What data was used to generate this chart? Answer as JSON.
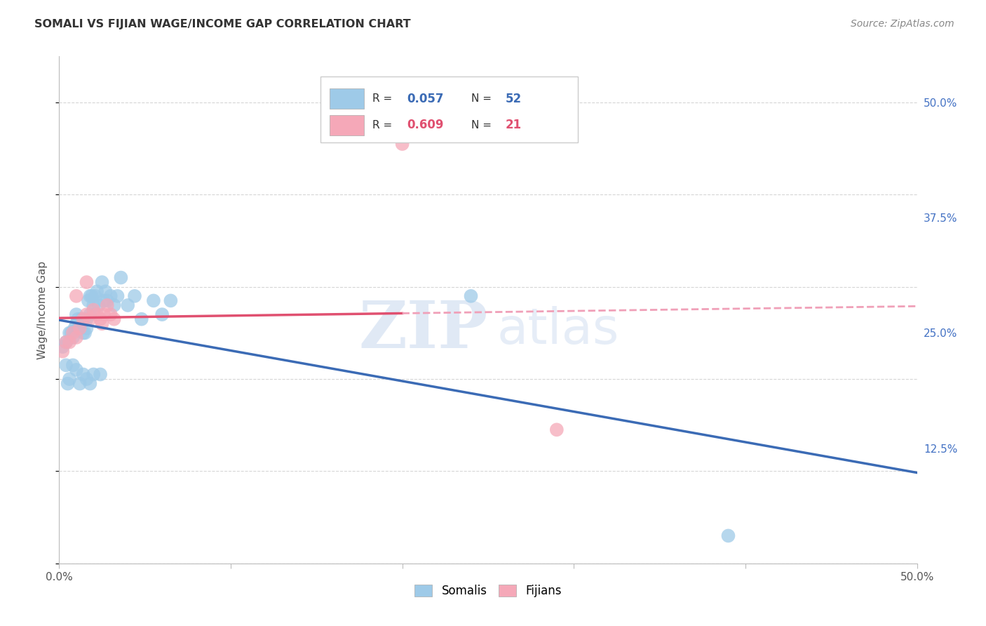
{
  "title": "SOMALI VS FIJIAN WAGE/INCOME GAP CORRELATION CHART",
  "source": "Source: ZipAtlas.com",
  "ylabel": "Wage/Income Gap",
  "xlim": [
    0.0,
    0.5
  ],
  "ylim": [
    0.0,
    0.55
  ],
  "somali_R": 0.057,
  "somali_N": 52,
  "fijian_R": 0.609,
  "fijian_N": 21,
  "somali_color": "#9ECAE8",
  "fijian_color": "#F5A8B8",
  "trend_somali_color": "#3B6BB5",
  "trend_fijian_color": "#E05070",
  "trend_fijian_dash_color": "#F0A0B8",
  "background_color": "#FFFFFF",
  "grid_color": "#CCCCCC",
  "watermark_zip": "ZIP",
  "watermark_atlas": "atlas",
  "ytick_right_labels": [
    "50.0%",
    "37.5%",
    "25.0%",
    "12.5%"
  ],
  "ytick_right_values": [
    0.5,
    0.375,
    0.25,
    0.125
  ],
  "somali_x": [
    0.002,
    0.004,
    0.004,
    0.006,
    0.007,
    0.008,
    0.009,
    0.01,
    0.01,
    0.011,
    0.011,
    0.012,
    0.013,
    0.013,
    0.014,
    0.015,
    0.016,
    0.016,
    0.017,
    0.018,
    0.018,
    0.019,
    0.02,
    0.021,
    0.022,
    0.023,
    0.025,
    0.026,
    0.027,
    0.028,
    0.03,
    0.032,
    0.034,
    0.036,
    0.04,
    0.044,
    0.048,
    0.055,
    0.06,
    0.065,
    0.005,
    0.006,
    0.008,
    0.01,
    0.012,
    0.014,
    0.016,
    0.018,
    0.02,
    0.024,
    0.24,
    0.39
  ],
  "somali_y": [
    0.235,
    0.215,
    0.24,
    0.25,
    0.25,
    0.245,
    0.255,
    0.26,
    0.27,
    0.255,
    0.265,
    0.255,
    0.26,
    0.265,
    0.25,
    0.25,
    0.255,
    0.265,
    0.285,
    0.27,
    0.29,
    0.29,
    0.28,
    0.29,
    0.295,
    0.28,
    0.305,
    0.285,
    0.295,
    0.285,
    0.29,
    0.28,
    0.29,
    0.31,
    0.28,
    0.29,
    0.265,
    0.285,
    0.27,
    0.285,
    0.195,
    0.2,
    0.215,
    0.21,
    0.195,
    0.205,
    0.2,
    0.195,
    0.205,
    0.205,
    0.29,
    0.03
  ],
  "fijian_x": [
    0.002,
    0.004,
    0.006,
    0.008,
    0.01,
    0.012,
    0.014,
    0.016,
    0.018,
    0.02,
    0.022,
    0.024,
    0.026,
    0.028,
    0.03,
    0.032,
    0.01,
    0.016,
    0.025,
    0.2,
    0.29
  ],
  "fijian_y": [
    0.23,
    0.24,
    0.24,
    0.25,
    0.245,
    0.255,
    0.265,
    0.27,
    0.265,
    0.275,
    0.27,
    0.265,
    0.27,
    0.28,
    0.27,
    0.265,
    0.29,
    0.305,
    0.26,
    0.455,
    0.145
  ]
}
